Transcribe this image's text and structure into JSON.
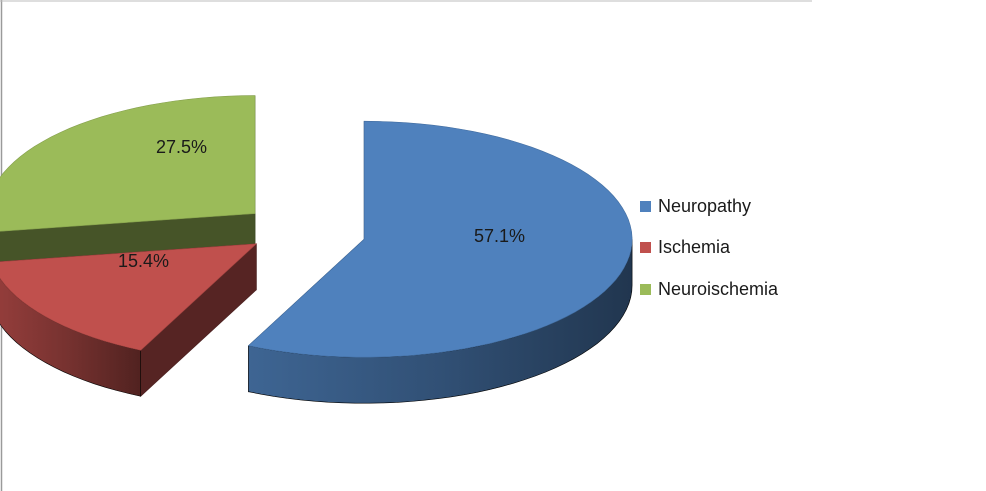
{
  "chart_data": {
    "type": "pie",
    "style": "3d-exploded",
    "categories": [
      "Neuropathy",
      "Ischemia",
      "Neuroischemia"
    ],
    "values": [
      57.1,
      15.4,
      27.5
    ],
    "labels": [
      "57.1%",
      "15.4%",
      "27.5%"
    ],
    "colors": [
      "#4F81BD",
      "#C0504D",
      "#9BBB59"
    ],
    "legend_position": "right"
  }
}
